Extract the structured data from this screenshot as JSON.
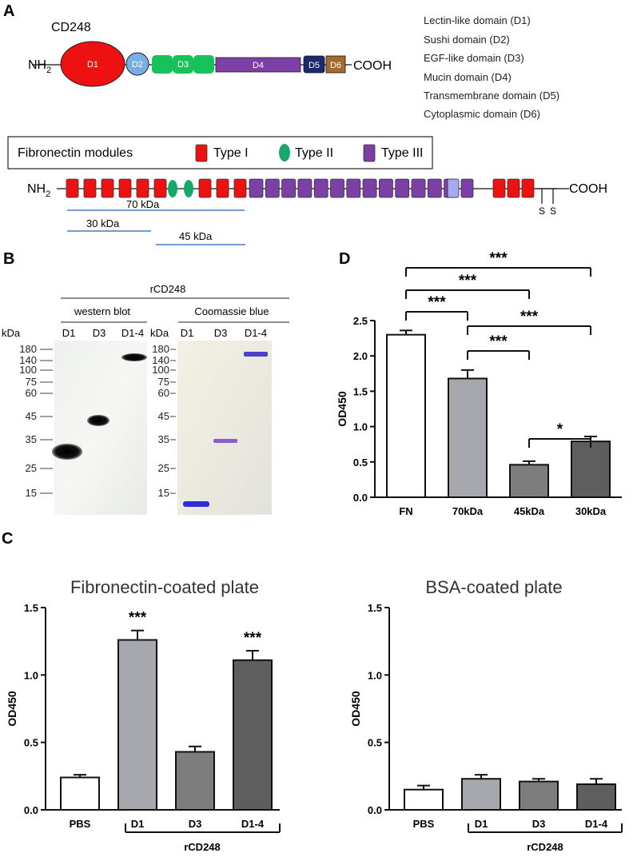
{
  "panels": {
    "A": "A",
    "B": "B",
    "C": "C",
    "D": "D"
  },
  "panel_a": {
    "protein_name": "CD248",
    "n_term": "NH",
    "n_term_sub": "2",
    "c_term": "COOH",
    "domains": [
      {
        "label": "D1",
        "color": "#ee1111"
      },
      {
        "label": "D2",
        "color": "#79aee3"
      },
      {
        "label": "D3",
        "color": "#17c25a"
      },
      {
        "label": "D4",
        "color": "#7b3fa5"
      },
      {
        "label": "D5",
        "color": "#1b2a6b"
      },
      {
        "label": "D6",
        "color": "#a56a2d"
      }
    ],
    "legend": [
      "Lectin-like domain (D1)",
      "Sushi domain (D2)",
      "EGF-like domain (D3)",
      "Mucin domain (D4)",
      "Transmembrane domain (D5)",
      "Cytoplasmic domain (D6)"
    ],
    "fn_box": {
      "title": "Fibronectin modules",
      "type1": "Type I",
      "type2": "Type II",
      "type3": "Type III",
      "type1_color": "#ee1111",
      "type2_color": "#17a86a",
      "type3_color": "#7b3fa5"
    },
    "fn_fragments": [
      "70 kDa",
      "30 kDa",
      "45 kDa"
    ],
    "ss": [
      "S",
      "S"
    ]
  },
  "panel_b": {
    "group_label": "rCD248",
    "wb_label": "western blot",
    "cb_label": "Coomassie blue",
    "kda": "kDa",
    "lanes": [
      "D1",
      "D3",
      "D1-4"
    ],
    "markers": [
      "180",
      "140",
      "100",
      "75",
      "60",
      "45",
      "35",
      "25",
      "15"
    ]
  },
  "panel_c": {
    "left_title": "Fibronectin-coated plate",
    "right_title": "BSA-coated plate",
    "group_label": "rCD248"
  },
  "panel_d": {
    "significance": [
      "***",
      "***",
      "***",
      "***",
      "***",
      "*"
    ]
  },
  "chart_data": [
    {
      "id": "panel-c-fibronectin",
      "type": "bar",
      "title": "Fibronectin-coated plate",
      "xlabel": "",
      "ylabel": "OD450",
      "ylim": [
        0,
        1.5
      ],
      "yticks": [
        "0.0",
        "0.5",
        "1.0",
        "1.5"
      ],
      "categories": [
        "PBS",
        "D1",
        "D3",
        "D1-4"
      ],
      "values": [
        0.24,
        1.26,
        0.43,
        1.11
      ],
      "errors": [
        0.02,
        0.07,
        0.04,
        0.07
      ],
      "bar_colors": [
        "#ffffff",
        "#a7a7ae",
        "#7d7d7d",
        "#5e5e5e"
      ],
      "annotations": [
        "",
        "***",
        "",
        "***"
      ],
      "grid": false
    },
    {
      "id": "panel-c-bsa",
      "type": "bar",
      "title": "BSA-coated plate",
      "xlabel": "",
      "ylabel": "OD450",
      "ylim": [
        0,
        1.5
      ],
      "yticks": [
        "0.0",
        "0.5",
        "1.0",
        "1.5"
      ],
      "categories": [
        "PBS",
        "D1",
        "D3",
        "D1-4"
      ],
      "values": [
        0.15,
        0.23,
        0.21,
        0.19
      ],
      "errors": [
        0.03,
        0.03,
        0.02,
        0.04
      ],
      "bar_colors": [
        "#ffffff",
        "#a7a7ae",
        "#7d7d7d",
        "#5e5e5e"
      ],
      "grid": false
    },
    {
      "id": "panel-d",
      "type": "bar",
      "title": "",
      "xlabel": "",
      "ylabel": "OD450",
      "ylim": [
        0,
        2.5
      ],
      "yticks": [
        "0.0",
        "0.5",
        "1.0",
        "1.5",
        "2.0",
        "2.5"
      ],
      "categories": [
        "FN",
        "70kDa",
        "45kDa",
        "30kDa"
      ],
      "values": [
        2.3,
        1.68,
        0.46,
        0.79
      ],
      "errors": [
        0.06,
        0.12,
        0.05,
        0.07
      ],
      "bar_colors": [
        "#ffffff",
        "#a7a7ae",
        "#7d7d7d",
        "#5e5e5e"
      ],
      "comparisons": [
        {
          "from": "FN",
          "to": "70kDa",
          "label": "***"
        },
        {
          "from": "FN",
          "to": "45kDa",
          "label": "***"
        },
        {
          "from": "FN",
          "to": "30kDa",
          "label": "***"
        },
        {
          "from": "70kDa",
          "to": "45kDa",
          "label": "***"
        },
        {
          "from": "70kDa",
          "to": "30kDa",
          "label": "***"
        },
        {
          "from": "45kDa",
          "to": "30kDa",
          "label": "*"
        }
      ],
      "grid": false
    }
  ]
}
